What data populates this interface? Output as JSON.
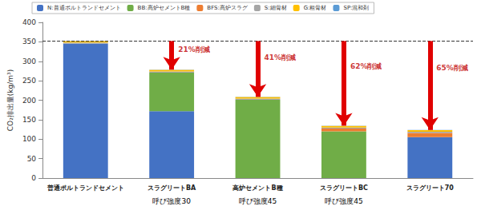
{
  "chart_data": {
    "type": "bar",
    "stacked": true,
    "grid": false,
    "legend": "top",
    "y_label": "CO₂排出量(kg/m³)",
    "categories": [
      "普通ポルトランドセメント",
      "スラグリートBA",
      "高炉セメントB種",
      "スラグリートBC",
      "スラグリート70"
    ],
    "category_notes": [
      null,
      "呼び強度30",
      "呼び強度45",
      "呼び強度45",
      null
    ],
    "series": [
      {
        "name": "N:普通ポルトランドセメント",
        "color": "#4472c4",
        "values": [
          345,
          172,
          0,
          0,
          105
        ]
      },
      {
        "name": "BB:高炉セメントB種",
        "color": "#70ad47",
        "values": [
          0,
          99,
          201,
          120,
          0
        ]
      },
      {
        "name": "BFS:高炉スラグ",
        "color": "#ed7d31",
        "values": [
          0,
          0,
          0,
          7,
          11
        ]
      },
      {
        "name": "S:細骨材",
        "color": "#a5a5a5",
        "values": [
          3,
          3,
          3,
          3,
          3
        ]
      },
      {
        "name": "G:粗骨材",
        "color": "#ffc000",
        "values": [
          4,
          4,
          4,
          4,
          4
        ]
      },
      {
        "name": "SP:混和剤",
        "color": "#5b9bd5",
        "values": [
          0.5,
          0.5,
          0.5,
          0.5,
          0.5
        ]
      }
    ],
    "ylim": [
      0,
      400
    ],
    "yticks": [
      0,
      50,
      100,
      150,
      200,
      250,
      300,
      350,
      400
    ],
    "reference_line": {
      "value": 352,
      "line_style": "dashed"
    },
    "annotations": [
      {
        "category": "スラグリートBA",
        "text": "21%削減"
      },
      {
        "category": "高炉セメントB種",
        "text": "41%削減"
      },
      {
        "category": "スラグリートBC",
        "text": "62%削減"
      },
      {
        "category": "スラグリート70",
        "text": "65%削減"
      }
    ]
  }
}
